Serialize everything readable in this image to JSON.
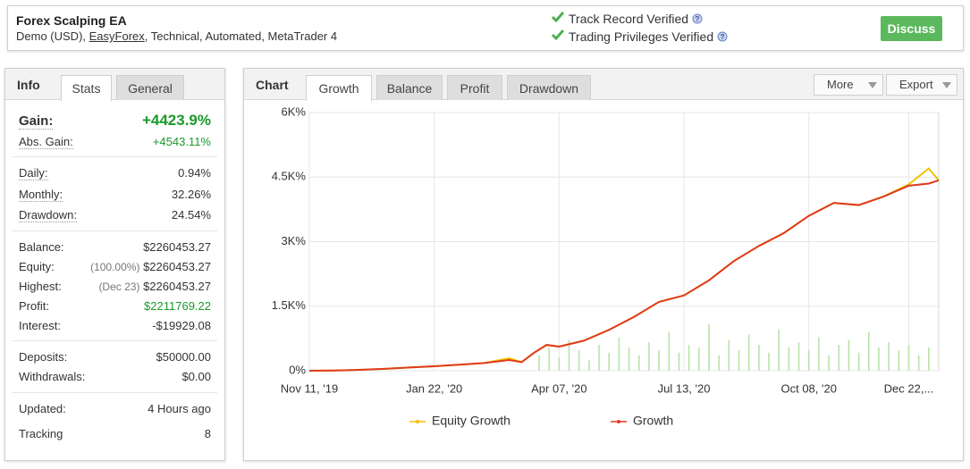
{
  "header": {
    "title": "Forex Scalping EA",
    "subtitle": [
      "Demo (USD), ",
      "EasyForex",
      ", Technical, Automated, MetaTrader 4"
    ],
    "verified": [
      "Track Record Verified",
      "Trading Privileges Verified"
    ],
    "button": "Discuss"
  },
  "info": {
    "tabs": [
      "Info",
      "Stats",
      "General"
    ],
    "sections": [
      [
        {
          "label": "Gain:",
          "value": "+4423.9%"
        },
        {
          "label": "Abs. Gain:",
          "value": "+4543.11%"
        }
      ],
      [
        {
          "label": "Daily:",
          "value": "0.94%"
        },
        {
          "label": "Monthly:",
          "value": "32.26%"
        },
        {
          "label": "Drawdown:",
          "value": "24.54%"
        }
      ],
      [
        {
          "label": "Balance:",
          "value": "$2260453.27"
        },
        {
          "label": "Equity:",
          "note": "(100.00%)",
          "value": "$2260453.27"
        },
        {
          "label": "Highest:",
          "note": "(Dec 23)",
          "value": "$2260453.27"
        },
        {
          "label": "Profit:",
          "value": "$2211769.22"
        },
        {
          "label": "Interest:",
          "value": "-$19929.08"
        }
      ],
      [
        {
          "label": "Deposits:",
          "value": "$50000.00"
        },
        {
          "label": "Withdrawals:",
          "value": "$0.00"
        }
      ],
      [
        {
          "label": "Updated:",
          "value": "4 Hours ago"
        },
        {
          "label": "Tracking",
          "value": "8"
        }
      ]
    ]
  },
  "chart_panel": {
    "tabs": [
      "Chart",
      "Growth",
      "Balance",
      "Profit",
      "Drawdown"
    ],
    "buttons": [
      "More",
      "Export"
    ]
  },
  "chart_data": {
    "type": "line",
    "xlim": [
      0,
      252
    ],
    "xticks": [
      {
        "value": 0,
        "label": "Nov 11, '19"
      },
      {
        "value": 50,
        "label": "Jan 22, '20"
      },
      {
        "value": 100,
        "label": "Apr 07, '20"
      },
      {
        "value": 150,
        "label": "Jul 13, '20"
      },
      {
        "value": 200,
        "label": "Oct 08, '20"
      },
      {
        "value": 240,
        "label": "Dec 22,..."
      }
    ],
    "ylim": [
      0,
      6000
    ],
    "yticks": [
      {
        "value": 0,
        "label": "0%"
      },
      {
        "value": 1500,
        "label": "1.5K%"
      },
      {
        "value": 3000,
        "label": "3K%"
      },
      {
        "value": 4500,
        "label": "4.5K%"
      },
      {
        "value": 6000,
        "label": "6K%"
      }
    ],
    "y2lim": [
      0,
      10
    ],
    "grid": true,
    "series": [
      {
        "name": "Equity Growth",
        "color": "#f2c200",
        "x": [
          0,
          10,
          20,
          30,
          40,
          50,
          60,
          70,
          80,
          85,
          90,
          95,
          100,
          110,
          120,
          130,
          140,
          150,
          160,
          170,
          180,
          190,
          200,
          210,
          220,
          230,
          240,
          248,
          252
        ],
        "values": [
          0,
          5,
          20,
          45,
          75,
          105,
          140,
          180,
          290,
          200,
          420,
          600,
          560,
          700,
          950,
          1250,
          1600,
          1750,
          2100,
          2550,
          2900,
          3200,
          3600,
          3900,
          3850,
          4050,
          4330,
          4700,
          4423.9
        ]
      },
      {
        "name": "Growth",
        "color": "#e03a1e",
        "x": [
          0,
          10,
          20,
          30,
          40,
          50,
          60,
          70,
          80,
          85,
          90,
          95,
          100,
          110,
          120,
          130,
          140,
          150,
          160,
          170,
          180,
          190,
          200,
          210,
          220,
          230,
          240,
          248,
          252
        ],
        "values": [
          0,
          5,
          20,
          45,
          75,
          105,
          140,
          180,
          250,
          200,
          420,
          600,
          560,
          700,
          950,
          1250,
          1600,
          1750,
          2100,
          2550,
          2900,
          3200,
          3600,
          3900,
          3850,
          4050,
          4300,
          4350,
          4423.9
        ]
      },
      {
        "type": "bar",
        "axis": "y2",
        "color": "#b9e3a9",
        "x": [
          92,
          96,
          100,
          104,
          108,
          112,
          116,
          120,
          124,
          128,
          132,
          136,
          140,
          144,
          148,
          152,
          156,
          160,
          164,
          168,
          172,
          176,
          180,
          184,
          188,
          192,
          196,
          200,
          204,
          208,
          212,
          216,
          220,
          224,
          228,
          232,
          236,
          240,
          244,
          248
        ],
        "values": [
          0.6,
          0.9,
          0.5,
          1.2,
          0.8,
          0.4,
          1.0,
          0.7,
          1.3,
          0.9,
          0.6,
          1.1,
          0.8,
          1.5,
          0.7,
          1.0,
          0.9,
          1.8,
          0.6,
          1.2,
          0.8,
          1.4,
          1.0,
          0.7,
          1.6,
          0.9,
          1.1,
          0.8,
          1.3,
          0.6,
          1.0,
          1.2,
          0.7,
          1.5,
          0.9,
          1.1,
          0.8,
          1.0,
          0.6,
          0.9
        ]
      }
    ]
  }
}
